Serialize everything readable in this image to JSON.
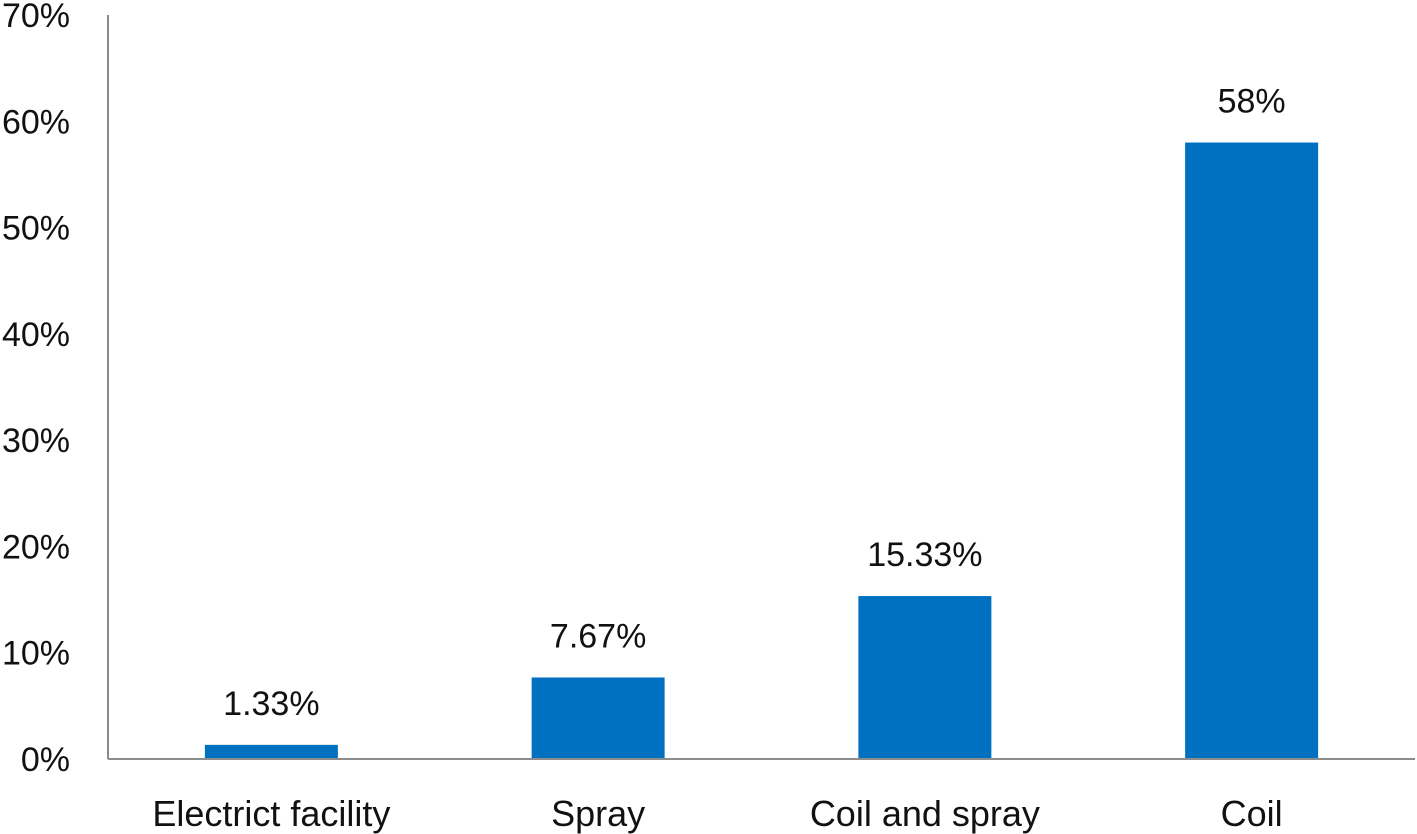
{
  "chart_data": {
    "type": "bar",
    "categories": [
      "Electrict facility",
      "Spray",
      "Coil and spray",
      "Coil"
    ],
    "values": [
      1.33,
      7.67,
      15.33,
      58
    ],
    "data_labels": [
      "1.33%",
      "7.67%",
      "15.33%",
      "58%"
    ],
    "y_tick_labels": [
      "0%",
      "10%",
      "20%",
      "30%",
      "40%",
      "50%",
      "60%",
      "70%"
    ],
    "y_ticks": [
      0,
      10,
      20,
      30,
      40,
      50,
      60,
      70
    ],
    "ylim": [
      0,
      70
    ],
    "title": "",
    "xlabel": "",
    "ylabel": "",
    "bar_color": "#0070c0",
    "grid": false,
    "legend": "none"
  }
}
